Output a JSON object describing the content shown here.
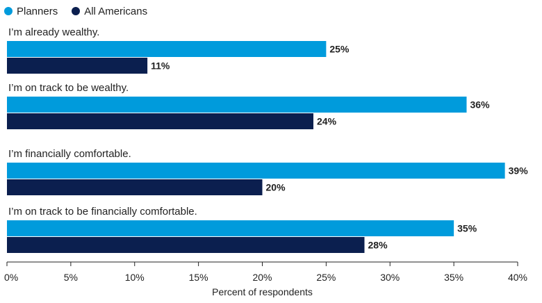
{
  "chart_data": {
    "type": "bar",
    "orientation": "horizontal",
    "categories": [
      "I’m already wealthy.",
      "I’m on track to be wealthy.",
      "I’m financially comfortable.",
      "I’m on track to be financially comfortable."
    ],
    "series": [
      {
        "name": "Planners",
        "color": "#009bdc",
        "values": [
          25,
          36,
          39,
          35
        ]
      },
      {
        "name": "All Americans",
        "color": "#0b1f4f",
        "values": [
          11,
          24,
          20,
          28
        ]
      }
    ],
    "xlabel": "Percent of respondents",
    "xlim": [
      0,
      40
    ],
    "ticks": [
      0,
      5,
      10,
      15,
      20,
      25,
      30,
      35,
      40
    ],
    "tick_suffix": "%",
    "value_suffix": "%",
    "legend_position": "top-left",
    "grid": false
  }
}
